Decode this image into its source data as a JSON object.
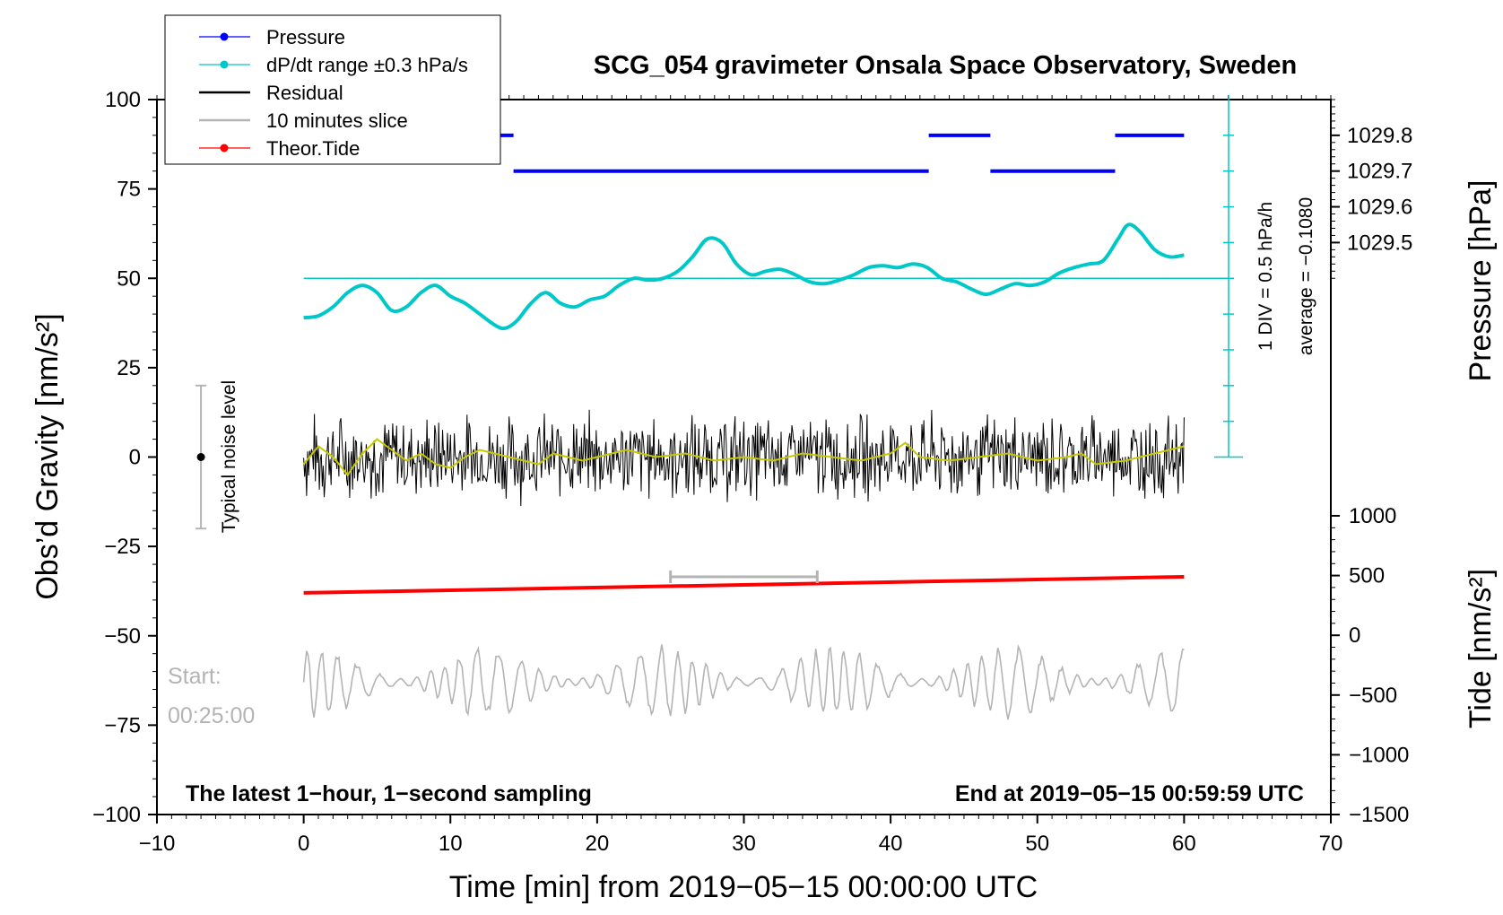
{
  "chart_data": {
    "type": "line",
    "title": "SCG_054 gravimeter Onsala Space Observatory, Sweden",
    "xlabel": "Time [min] from 2019−05−15 00:00:00 UTC",
    "ylabel_left": "Obs’d Gravity [nm/s²]",
    "ylabel_pressure": "Pressure [hPa]",
    "ylabel_tide": "Tide [nm/s²]",
    "xlim": [
      -10,
      70
    ],
    "ylim": [
      -100,
      100
    ],
    "pressure_range": [
      1029.4,
      1029.9
    ],
    "tide_range": [
      -1500,
      1000
    ],
    "x_ticks": [
      "−10",
      "0",
      "10",
      "20",
      "30",
      "40",
      "50",
      "60",
      "70"
    ],
    "y_ticks": [
      "100",
      "75",
      "50",
      "25",
      "0",
      "−25",
      "−50",
      "−75",
      "−100"
    ],
    "pressure_ticks": [
      "1029.8",
      "1029.7",
      "1029.6",
      "1029.5"
    ],
    "tide_ticks": [
      "1000",
      "500",
      "0",
      "−500",
      "−1000",
      "−1500"
    ],
    "legend": [
      {
        "name": "Pressure",
        "color": "#0000ff",
        "marker": true
      },
      {
        "name": "dP/dt range ±0.3 hPa/s",
        "color": "#00c8c8",
        "marker": true
      },
      {
        "name": "Residual",
        "color": "#000000",
        "marker": false
      },
      {
        "name": "10 minutes slice",
        "color": "#b4b4b4",
        "marker": false
      },
      {
        "name": "Theor.Tide",
        "color": "#ff0000",
        "marker": true
      }
    ],
    "pressure_segments": [
      {
        "x0": 0,
        "x1": 14.3,
        "hpa": 1029.8
      },
      {
        "x0": 14.3,
        "x1": 42.6,
        "hpa": 1029.7
      },
      {
        "x0": 42.6,
        "x1": 46.8,
        "hpa": 1029.8
      },
      {
        "x0": 46.8,
        "x1": 55.3,
        "hpa": 1029.7
      },
      {
        "x0": 55.3,
        "x1": 60,
        "hpa": 1029.8
      }
    ],
    "dpdt_curve": {
      "color": "#00c8c8",
      "x": [
        0,
        1,
        2,
        3,
        4,
        5,
        6,
        7,
        8,
        9,
        10,
        11,
        12,
        13,
        13.7,
        14.5,
        15.5,
        16.5,
        17.5,
        18.5,
        19.5,
        20.5,
        21.5,
        22.5,
        23.5,
        24.5,
        25.5,
        26.5,
        27.5,
        28.5,
        29.5,
        30.5,
        31.5,
        32.5,
        33.5,
        34.5,
        35.5,
        36.5,
        37.5,
        38.5,
        39.5,
        40.5,
        41.5,
        42.5,
        43.5,
        44.5,
        45.5,
        46.5,
        47.5,
        48.5,
        49.5,
        50.5,
        51.5,
        52.5,
        53.5,
        54.5,
        55.5,
        56.2,
        57,
        58,
        59,
        60
      ],
      "y": [
        39,
        39.5,
        42,
        46,
        48,
        46,
        41,
        42,
        46,
        48,
        45,
        43,
        40,
        37,
        36,
        38,
        43,
        46,
        43,
        42,
        44,
        45,
        48,
        50,
        49.5,
        50,
        52,
        56,
        61,
        60,
        54,
        51,
        52,
        52.5,
        51,
        49,
        48.5,
        49.5,
        51,
        53,
        53.5,
        53,
        54,
        53,
        50,
        49,
        47,
        45.5,
        47,
        48.5,
        48,
        49,
        51.5,
        53,
        54,
        55,
        61,
        65,
        63,
        58,
        56,
        56.5
      ]
    },
    "dpdt_reference_y": 50,
    "dpdt_scale_note": "1 DIV = 0.5 hPa/h",
    "dpdt_average_note": "average = −0.1080",
    "tide": {
      "x0": 0,
      "y0": -38,
      "x1": 60,
      "y1": -33.5,
      "color": "#ff0000"
    },
    "slice_bracket": {
      "x0": 25,
      "x1": 35,
      "y": -33.5
    },
    "residual_band": {
      "center": 0,
      "amplitude": 14,
      "color": "#000000"
    },
    "residual_smooth": {
      "color": "#c8c800",
      "x": [
        0,
        1,
        2,
        3,
        4,
        5,
        6,
        7,
        8,
        9,
        10,
        11,
        12,
        13,
        14,
        15,
        16,
        17,
        18,
        19,
        20,
        22,
        24,
        26,
        28,
        30,
        32,
        34,
        36,
        38,
        40,
        41,
        42,
        44,
        46,
        48,
        50,
        52,
        53,
        54,
        56,
        58,
        60
      ],
      "y": [
        -2,
        3,
        0,
        -5,
        1,
        5,
        2,
        -1,
        1,
        -2,
        -3,
        0,
        2,
        1,
        0,
        -1,
        -2,
        1,
        0,
        -1,
        0,
        2,
        0,
        1,
        -1,
        0,
        -1,
        1,
        0,
        -1,
        1,
        4,
        0,
        -1,
        0,
        1,
        -1,
        0,
        1,
        -2,
        -1,
        1,
        3
      ]
    },
    "slice_wave": {
      "center": -63,
      "amplitude": 9,
      "color": "#b4b4b4"
    },
    "noise_bar": {
      "x": -7,
      "y0": -20,
      "y1": 20,
      "label": "Typical noise level"
    },
    "start_label": "Start:",
    "start_time": "00:25:00",
    "note_left": "The latest 1−hour, 1−second sampling",
    "note_right": "End at 2019−05−15 00:59:59 UTC"
  }
}
